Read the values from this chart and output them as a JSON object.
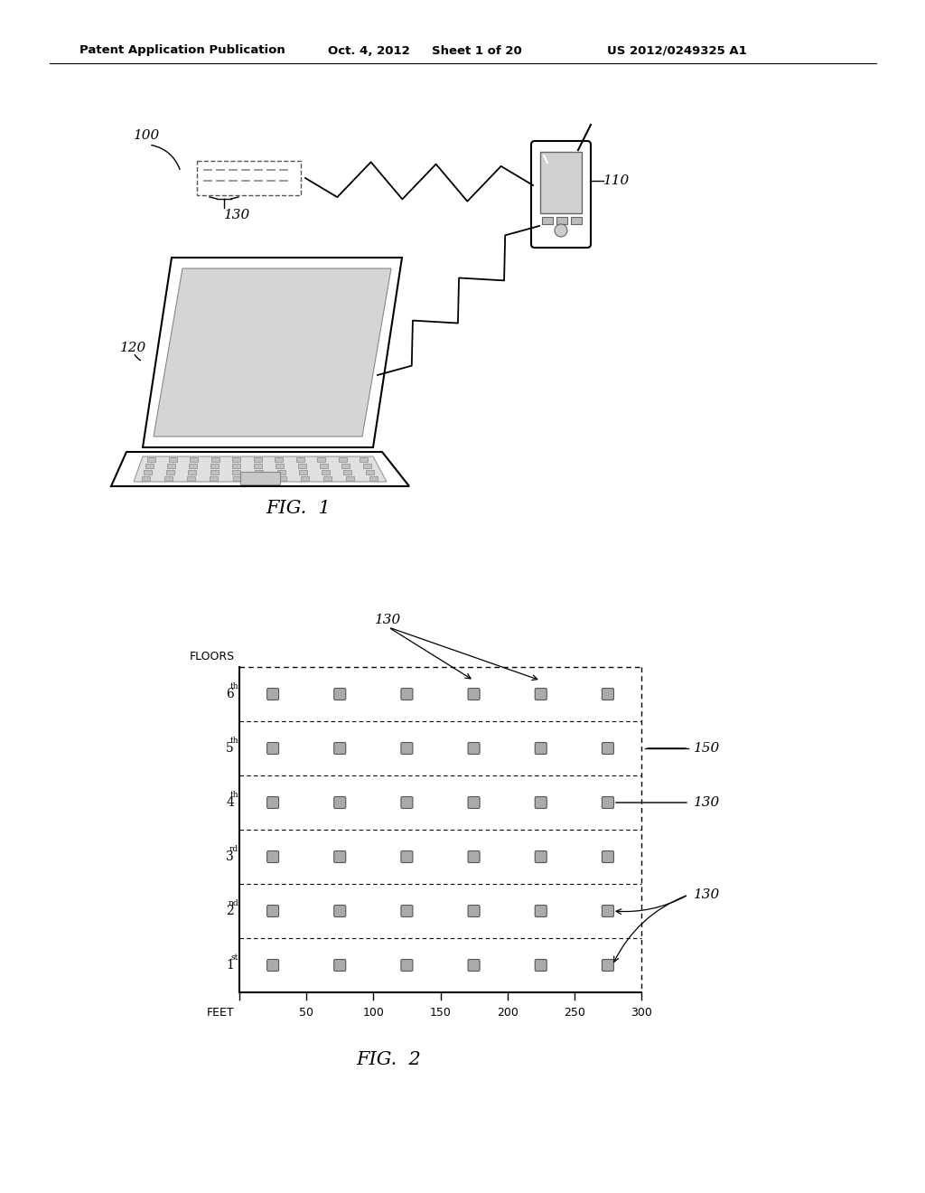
{
  "background_color": "#ffffff",
  "header_text": "Patent Application Publication",
  "header_date": "Oct. 4, 2012",
  "header_sheet": "Sheet 1 of 20",
  "header_patent": "US 2012/0249325 A1",
  "fig1_label": "FIG.  1",
  "fig2_label": "FIG.  2",
  "label_100": "100",
  "label_110": "110",
  "label_120": "120",
  "label_130_top": "130",
  "label_130_fig2": "130",
  "label_130_3rd": "130",
  "label_130_2nd": "130",
  "label_150": "150",
  "floors_label": "FLOORS",
  "feet_labels": [
    "FEET",
    "50",
    "100",
    "150",
    "200",
    "250",
    "300"
  ]
}
